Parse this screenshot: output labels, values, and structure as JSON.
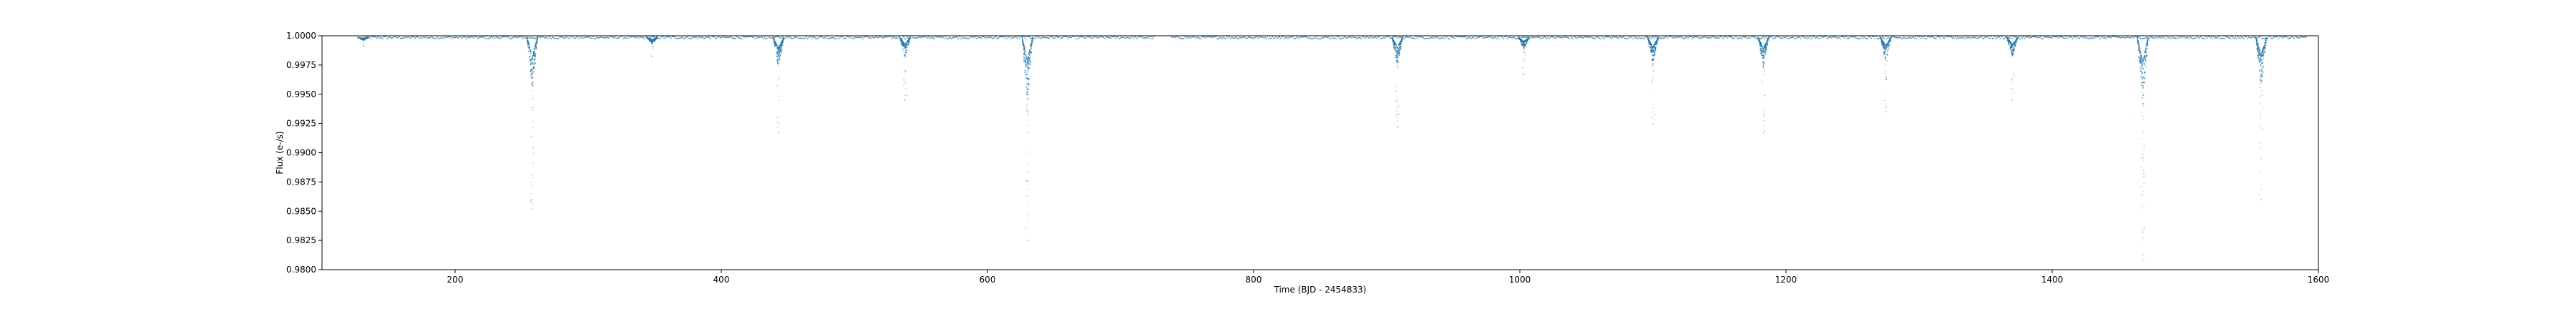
{
  "chart_data": {
    "type": "scatter",
    "title": "",
    "xlabel": "Time (BJD - 2454833)",
    "ylabel": "Flux (e-/s)",
    "xlim": [
      100,
      1600
    ],
    "ylim": [
      0.98,
      1.0
    ],
    "xticks": [
      200,
      400,
      600,
      800,
      1000,
      1200,
      1400,
      1600
    ],
    "xtick_labels": [
      "200",
      "400",
      "600",
      "800",
      "1000",
      "1200",
      "1400",
      "1600"
    ],
    "yticks": [
      0.98,
      0.9825,
      0.985,
      0.9875,
      0.99,
      0.9925,
      0.995,
      0.9975,
      1.0
    ],
    "ytick_labels": [
      "0.9800",
      "0.9825",
      "0.9850",
      "0.9875",
      "0.9900",
      "0.9925",
      "0.9950",
      "0.9975",
      "1.0000"
    ],
    "grid": false,
    "series": [
      {
        "color": "#1f77b4",
        "baseline": 0.99985,
        "data_range": [
          131,
          1591
        ],
        "gaps": [
          [
            725,
            738
          ]
        ],
        "dips": [
          {
            "x": 131,
            "min": 0.9991
          },
          {
            "x": 258,
            "min": 0.9852
          },
          {
            "x": 348,
            "min": 0.9982
          },
          {
            "x": 443,
            "min": 0.9917
          },
          {
            "x": 538,
            "min": 0.9945
          },
          {
            "x": 630,
            "min": 0.9825
          },
          {
            "x": 908,
            "min": 0.9922
          },
          {
            "x": 1003,
            "min": 0.9967
          },
          {
            "x": 1100,
            "min": 0.9925
          },
          {
            "x": 1183,
            "min": 0.9917
          },
          {
            "x": 1275,
            "min": 0.9935
          },
          {
            "x": 1370,
            "min": 0.9945
          },
          {
            "x": 1468,
            "min": 0.9808
          },
          {
            "x": 1557,
            "min": 0.986
          }
        ]
      }
    ]
  }
}
